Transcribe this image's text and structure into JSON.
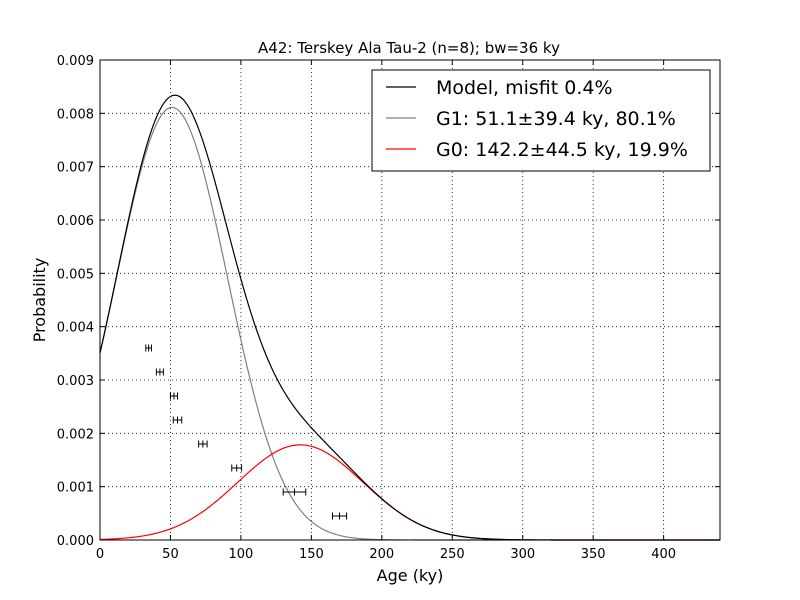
{
  "chart_data": {
    "type": "line",
    "title": "A42: Terskey Ala Tau-2 (n=8); bw=36 ky",
    "xlabel": "Age (ky)",
    "ylabel": "Probability",
    "xlim": [
      0,
      440
    ],
    "ylim": [
      0,
      0.009
    ],
    "x_ticks": [
      0,
      50,
      100,
      150,
      200,
      250,
      300,
      350,
      400
    ],
    "x_tick_labels": [
      "0",
      "50",
      "100",
      "150",
      "200",
      "250",
      "300",
      "350",
      "400"
    ],
    "y_ticks": [
      0,
      0.001,
      0.002,
      0.003,
      0.004,
      0.005,
      0.006,
      0.007,
      0.008,
      0.009
    ],
    "y_tick_labels": [
      "0.000",
      "0.001",
      "0.002",
      "0.003",
      "0.004",
      "0.005",
      "0.006",
      "0.007",
      "0.008",
      "0.009"
    ],
    "grid": true,
    "legend_position": "top-right",
    "series": [
      {
        "name": "Model, misfit 0.4%",
        "color": "#000000",
        "kind": "gaussian-mixture"
      },
      {
        "name": "G1: 51.1±39.4 ky, 80.1%",
        "color": "#808080",
        "kind": "gaussian",
        "mean": 51.1,
        "sd": 39.4,
        "weight": 0.801
      },
      {
        "name": "G0: 142.2±44.5 ky, 19.9%",
        "color": "#ff0000",
        "kind": "gaussian",
        "mean": 142.2,
        "sd": 44.5,
        "weight": 0.199
      }
    ],
    "samples": [
      {
        "age": 34.5,
        "err": 2.0,
        "y": 0.0036
      },
      {
        "age": 42.5,
        "err": 2.5,
        "y": 0.00315
      },
      {
        "age": 52.5,
        "err": 2.5,
        "y": 0.0027
      },
      {
        "age": 55.0,
        "err": 3.0,
        "y": 0.00225
      },
      {
        "age": 73.0,
        "err": 3.0,
        "y": 0.0018
      },
      {
        "age": 97.0,
        "err": 3.5,
        "y": 0.00135
      },
      {
        "age": 138.0,
        "err": 8.0,
        "y": 0.0009
      },
      {
        "age": 170.0,
        "err": 5.0,
        "y": 0.00045
      }
    ]
  }
}
